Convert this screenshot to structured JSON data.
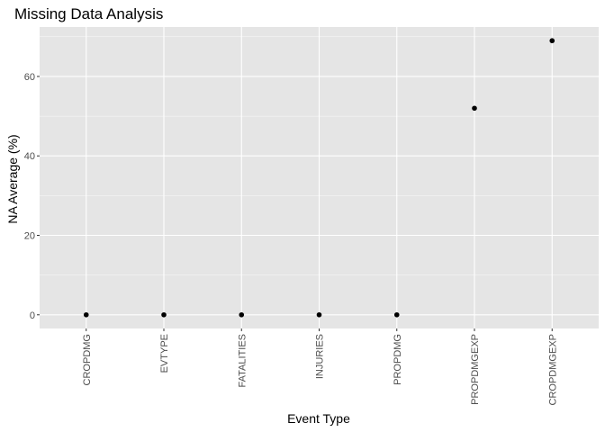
{
  "chart_data": {
    "type": "scatter",
    "title": "Missing Data Analysis",
    "xlabel": "Event Type",
    "ylabel": "NA Average  (%)",
    "categories": [
      "CROPDMG",
      "EVTYPE",
      "FATALITIES",
      "INJURIES",
      "PROPDMG",
      "PROPDMGEXP",
      "CROPDMGEXP"
    ],
    "values": [
      0,
      0,
      0,
      0,
      0,
      52,
      69
    ],
    "yticks": [
      0,
      20,
      40,
      60
    ],
    "ylim": [
      -3.45,
      72.45
    ],
    "grid": true,
    "legend": "none",
    "colors": {
      "panel": "#e5e5e5",
      "grid_major": "#ffffff",
      "point": "#000000",
      "tick_text": "#4d4d4d"
    }
  }
}
